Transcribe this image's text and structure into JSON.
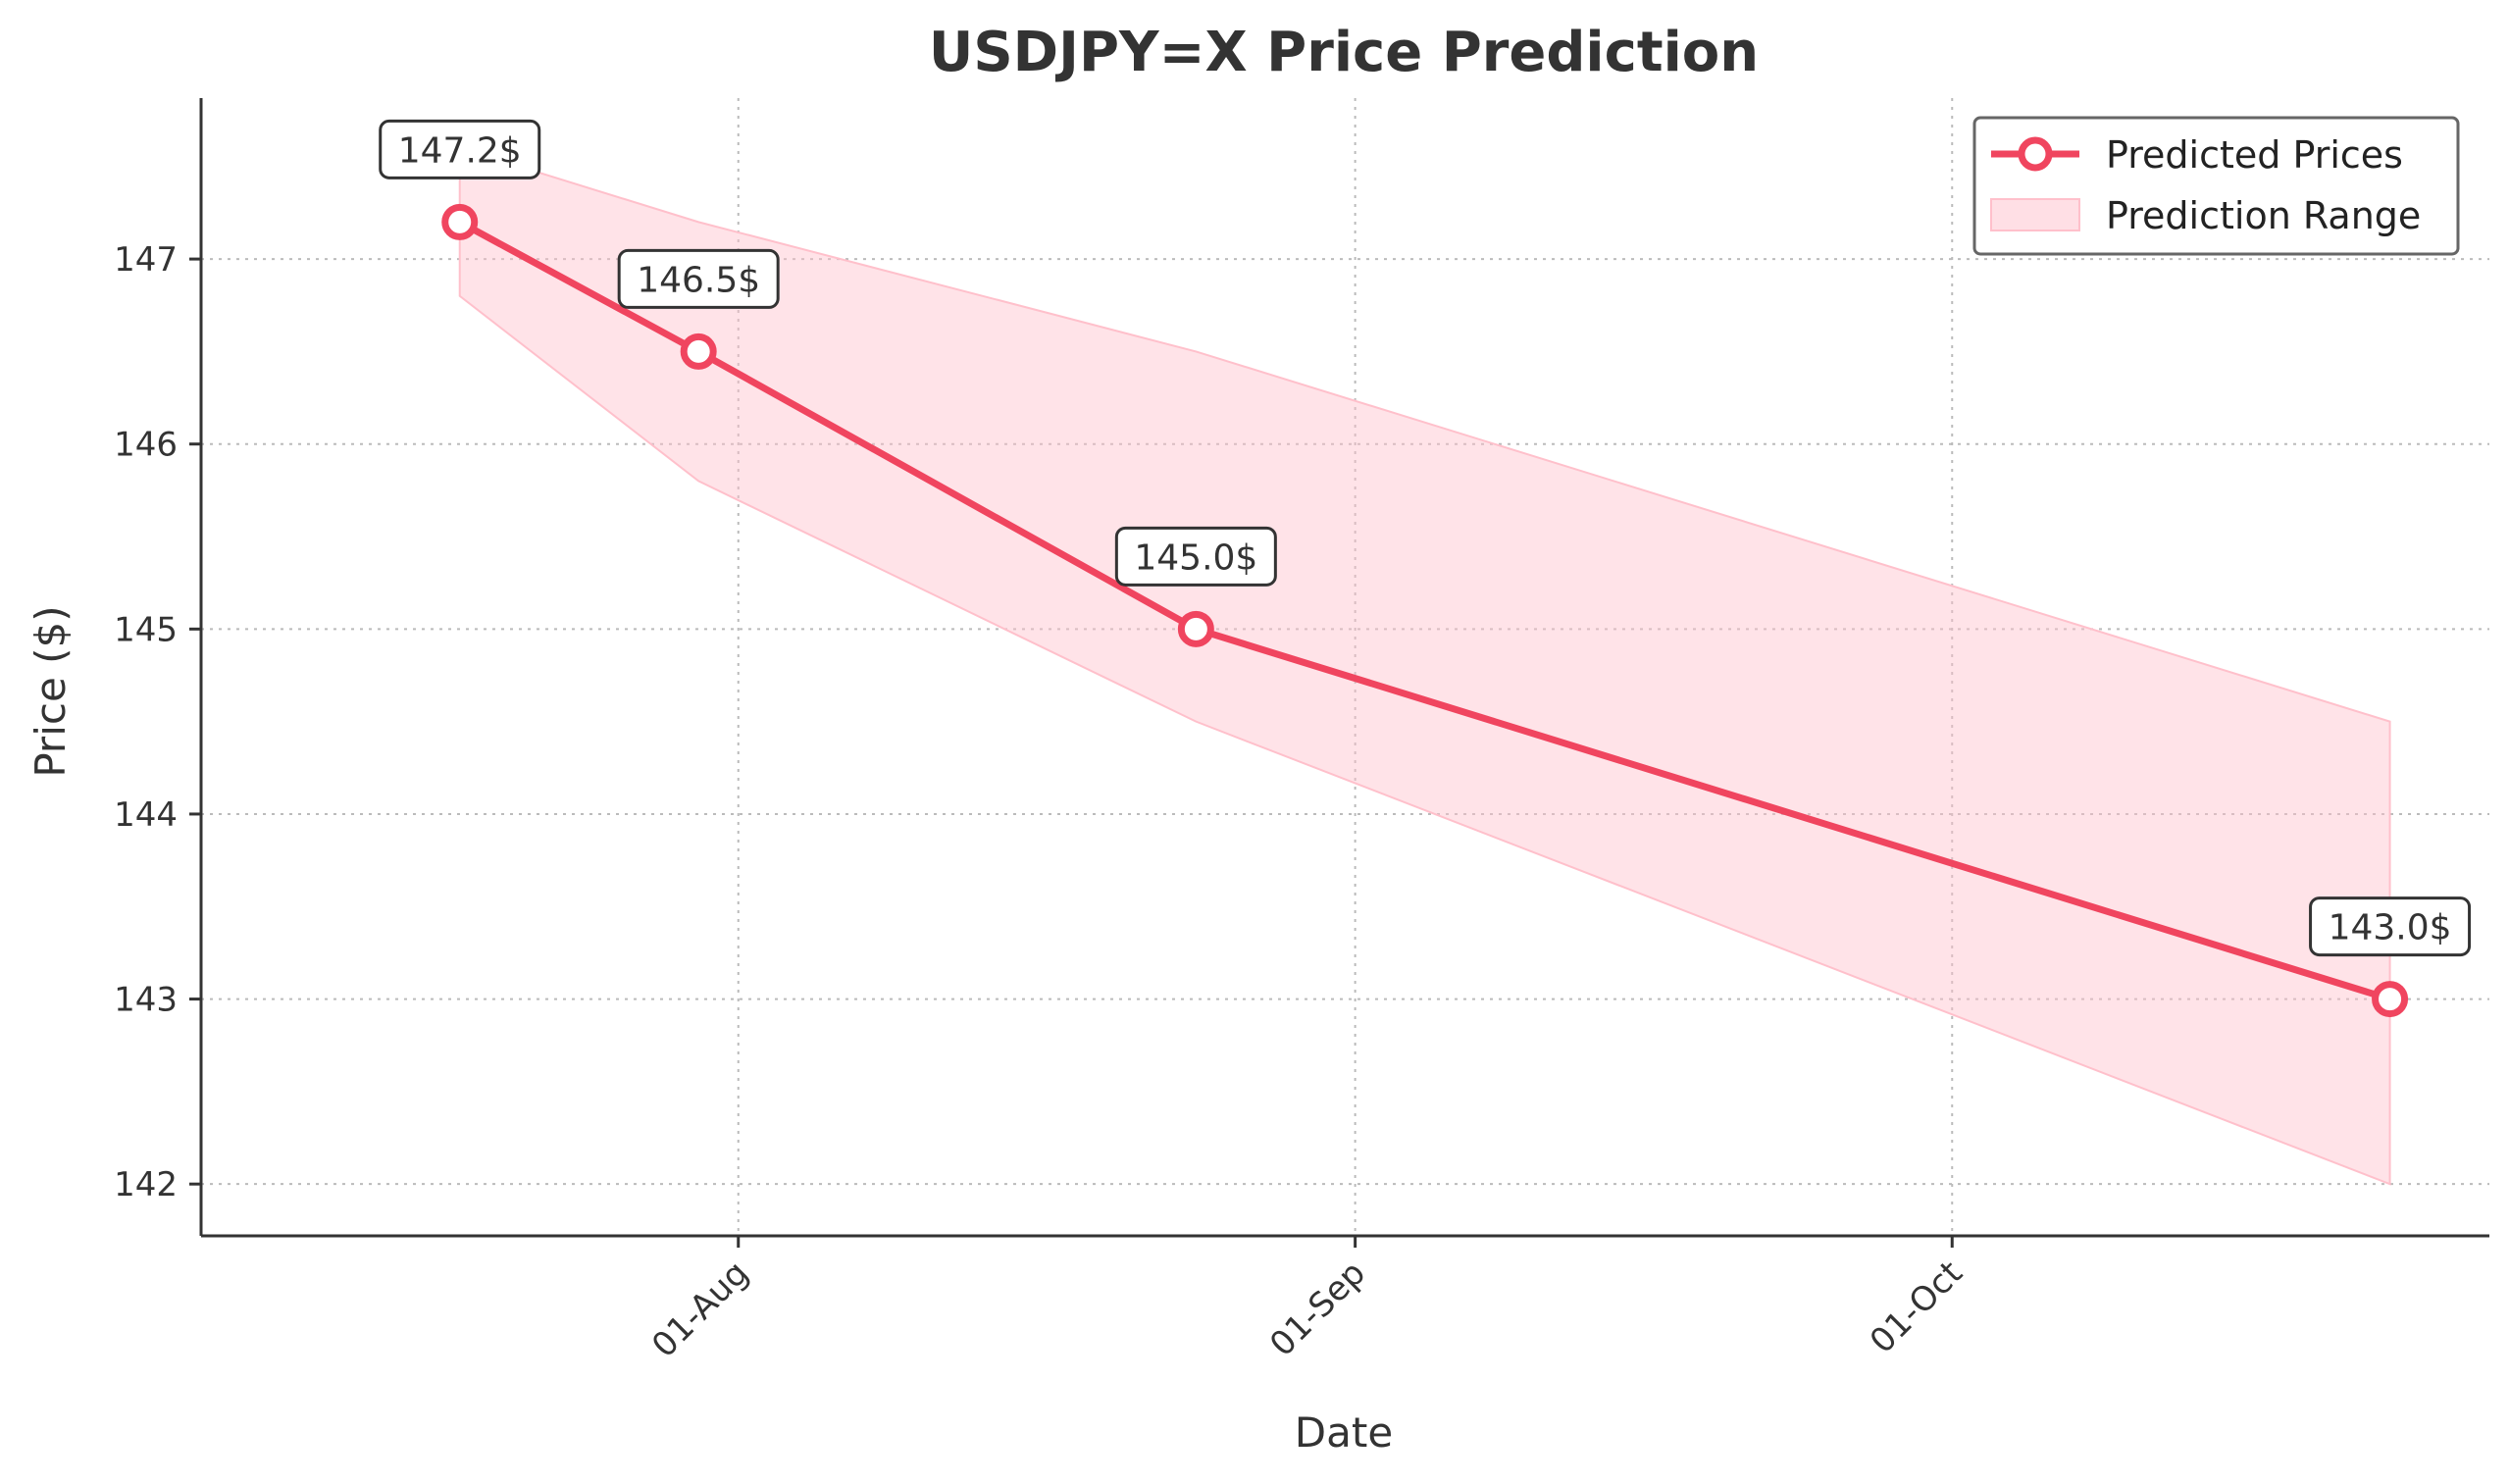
{
  "chart_data": {
    "type": "line",
    "title": "USDJPY=X Price Prediction",
    "xlabel": "Date",
    "ylabel": "Price ($)",
    "x": [
      "2024-07-18",
      "2024-07-30",
      "2024-08-24",
      "2024-10-23"
    ],
    "series": [
      {
        "name": "Predicted Prices",
        "values": [
          147.2,
          146.5,
          145.0,
          143.0
        ],
        "color": "#f0455f"
      }
    ],
    "range": {
      "name": "Prediction Range",
      "upper": [
        147.6,
        147.2,
        146.5,
        144.5
      ],
      "lower": [
        146.8,
        145.8,
        144.5,
        142.0
      ],
      "color": "#ffc0cb"
    },
    "annotations": [
      "147.2$",
      "146.5$",
      "145.0$",
      "143.0$"
    ],
    "x_ticks": [
      {
        "date": "2024-08-01",
        "label": "01-Aug"
      },
      {
        "date": "2024-09-01",
        "label": "01-Sep"
      },
      {
        "date": "2024-10-01",
        "label": "01-Oct"
      }
    ],
    "y_ticks": [
      142,
      143,
      144,
      145,
      146,
      147
    ],
    "xlim": [
      "2024-07-05",
      "2024-10-28"
    ],
    "ylim": [
      141.72,
      147.87
    ],
    "grid": true,
    "legend_position": "top-right"
  }
}
